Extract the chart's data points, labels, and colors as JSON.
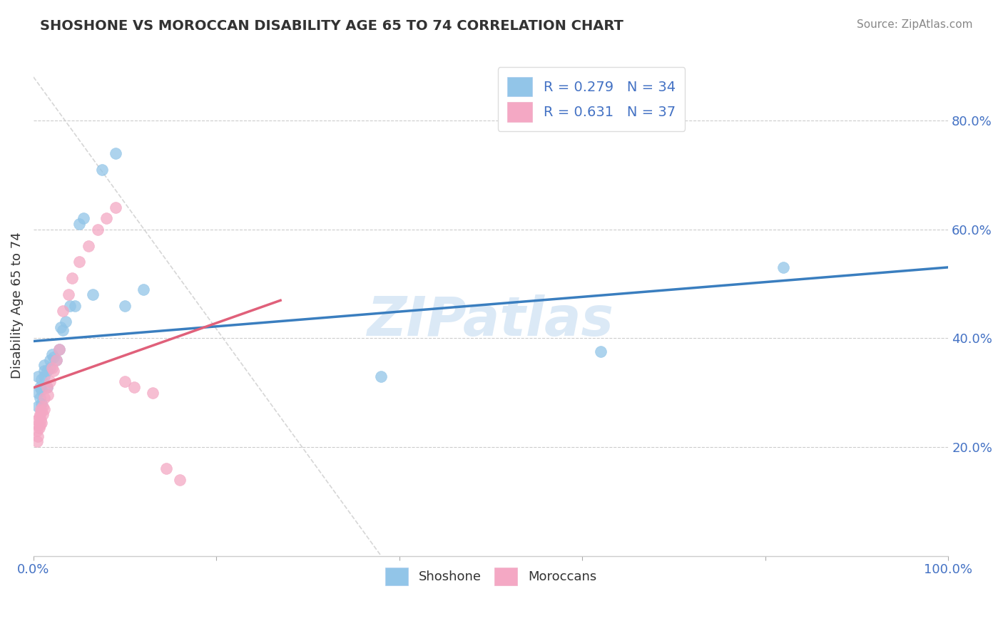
{
  "title": "SHOSHONE VS MOROCCAN DISABILITY AGE 65 TO 74 CORRELATION CHART",
  "source": "Source: ZipAtlas.com",
  "ylabel": "Disability Age 65 to 74",
  "watermark": "ZIPatlas",
  "legend_r1": "R = 0.279",
  "legend_n1": "N = 34",
  "legend_r2": "R = 0.631",
  "legend_n2": "N = 37",
  "legend_label1": "Shoshone",
  "legend_label2": "Moroccans",
  "shoshone_color": "#92c5e8",
  "moroccan_color": "#f4a8c4",
  "shoshone_line_color": "#3a7ebf",
  "moroccan_line_color": "#e0607a",
  "xlim": [
    0.0,
    1.0
  ],
  "ylim": [
    0.0,
    0.92
  ],
  "yticks": [
    0.2,
    0.4,
    0.6,
    0.8
  ],
  "ytick_labels": [
    "20.0%",
    "40.0%",
    "60.0%",
    "80.0%"
  ],
  "shoshone_x": [
    0.005,
    0.005,
    0.005,
    0.007,
    0.007,
    0.009,
    0.009,
    0.009,
    0.012,
    0.012,
    0.012,
    0.015,
    0.015,
    0.018,
    0.018,
    0.02,
    0.022,
    0.025,
    0.028,
    0.03,
    0.032,
    0.035,
    0.04,
    0.045,
    0.05,
    0.055,
    0.065,
    0.075,
    0.09,
    0.1,
    0.12,
    0.38,
    0.62,
    0.82
  ],
  "shoshone_y": [
    0.33,
    0.3,
    0.275,
    0.31,
    0.29,
    0.325,
    0.305,
    0.28,
    0.35,
    0.34,
    0.33,
    0.34,
    0.31,
    0.36,
    0.345,
    0.37,
    0.365,
    0.36,
    0.38,
    0.42,
    0.415,
    0.43,
    0.46,
    0.46,
    0.61,
    0.62,
    0.48,
    0.71,
    0.74,
    0.46,
    0.49,
    0.33,
    0.375,
    0.53
  ],
  "moroccan_x": [
    0.004,
    0.004,
    0.004,
    0.005,
    0.005,
    0.006,
    0.006,
    0.007,
    0.007,
    0.008,
    0.008,
    0.009,
    0.009,
    0.01,
    0.01,
    0.012,
    0.012,
    0.015,
    0.016,
    0.018,
    0.02,
    0.022,
    0.025,
    0.028,
    0.032,
    0.038,
    0.042,
    0.05,
    0.06,
    0.07,
    0.08,
    0.09,
    0.1,
    0.11,
    0.13,
    0.145,
    0.16
  ],
  "moroccan_y": [
    0.25,
    0.23,
    0.21,
    0.24,
    0.22,
    0.255,
    0.235,
    0.26,
    0.24,
    0.27,
    0.25,
    0.265,
    0.245,
    0.275,
    0.26,
    0.29,
    0.27,
    0.31,
    0.295,
    0.32,
    0.345,
    0.34,
    0.36,
    0.38,
    0.45,
    0.48,
    0.51,
    0.54,
    0.57,
    0.6,
    0.62,
    0.64,
    0.32,
    0.31,
    0.3,
    0.16,
    0.14
  ]
}
